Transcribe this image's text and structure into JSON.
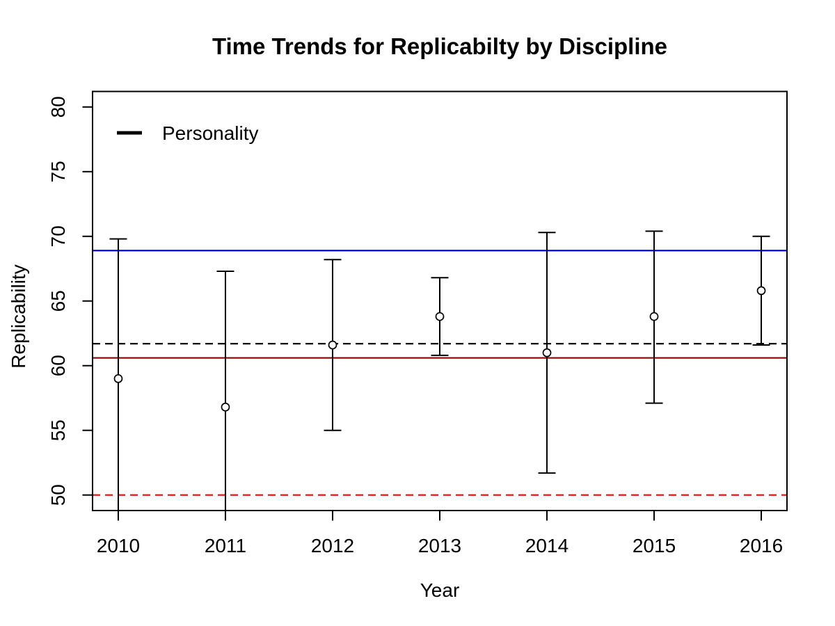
{
  "page": {
    "background": "#ffffff"
  },
  "chart_data": {
    "type": "scatter",
    "subtype": "points-with-error-bars",
    "title": "Time Trends for Replicabilty by Discipline",
    "xlabel": "Year",
    "ylabel": "Replicability",
    "x_ticks": [
      2010,
      2011,
      2012,
      2013,
      2014,
      2015,
      2016
    ],
    "y_ticks": [
      50,
      55,
      60,
      65,
      70,
      75,
      80
    ],
    "xlim": [
      2009.76,
      2016.24
    ],
    "ylim": [
      48.8,
      81.2
    ],
    "grid": false,
    "legend": {
      "position": "top-left",
      "entries": [
        {
          "label": "Personality",
          "color": "#000000",
          "style": "solid-line"
        }
      ]
    },
    "series": [
      {
        "name": "Personality",
        "marker": "open-circle",
        "color": "#000000",
        "points": [
          {
            "year": 2010,
            "value": 59.0,
            "upper": 69.8,
            "lower": 48.8,
            "lower_capped": false
          },
          {
            "year": 2011,
            "value": 56.8,
            "upper": 67.3,
            "lower": 48.8,
            "lower_capped": false
          },
          {
            "year": 2012,
            "value": 61.6,
            "upper": 68.2,
            "lower": 55.0,
            "lower_capped": true
          },
          {
            "year": 2013,
            "value": 63.8,
            "upper": 66.8,
            "lower": 60.8,
            "lower_capped": true
          },
          {
            "year": 2014,
            "value": 61.0,
            "upper": 70.3,
            "lower": 51.7,
            "lower_capped": true
          },
          {
            "year": 2015,
            "value": 63.8,
            "upper": 70.4,
            "lower": 57.1,
            "lower_capped": true
          },
          {
            "year": 2016,
            "value": 65.8,
            "upper": 70.0,
            "lower": 61.6,
            "lower_capped": true
          }
        ]
      }
    ],
    "reference_lines": [
      {
        "value": 68.9,
        "color": "#0000FF",
        "style": "solid"
      },
      {
        "value": 61.7,
        "color": "#000000",
        "style": "dashed"
      },
      {
        "value": 60.6,
        "color": "#8B0000",
        "style": "solid"
      },
      {
        "value": 50.0,
        "color": "#FF0000",
        "style": "dashed"
      }
    ]
  }
}
